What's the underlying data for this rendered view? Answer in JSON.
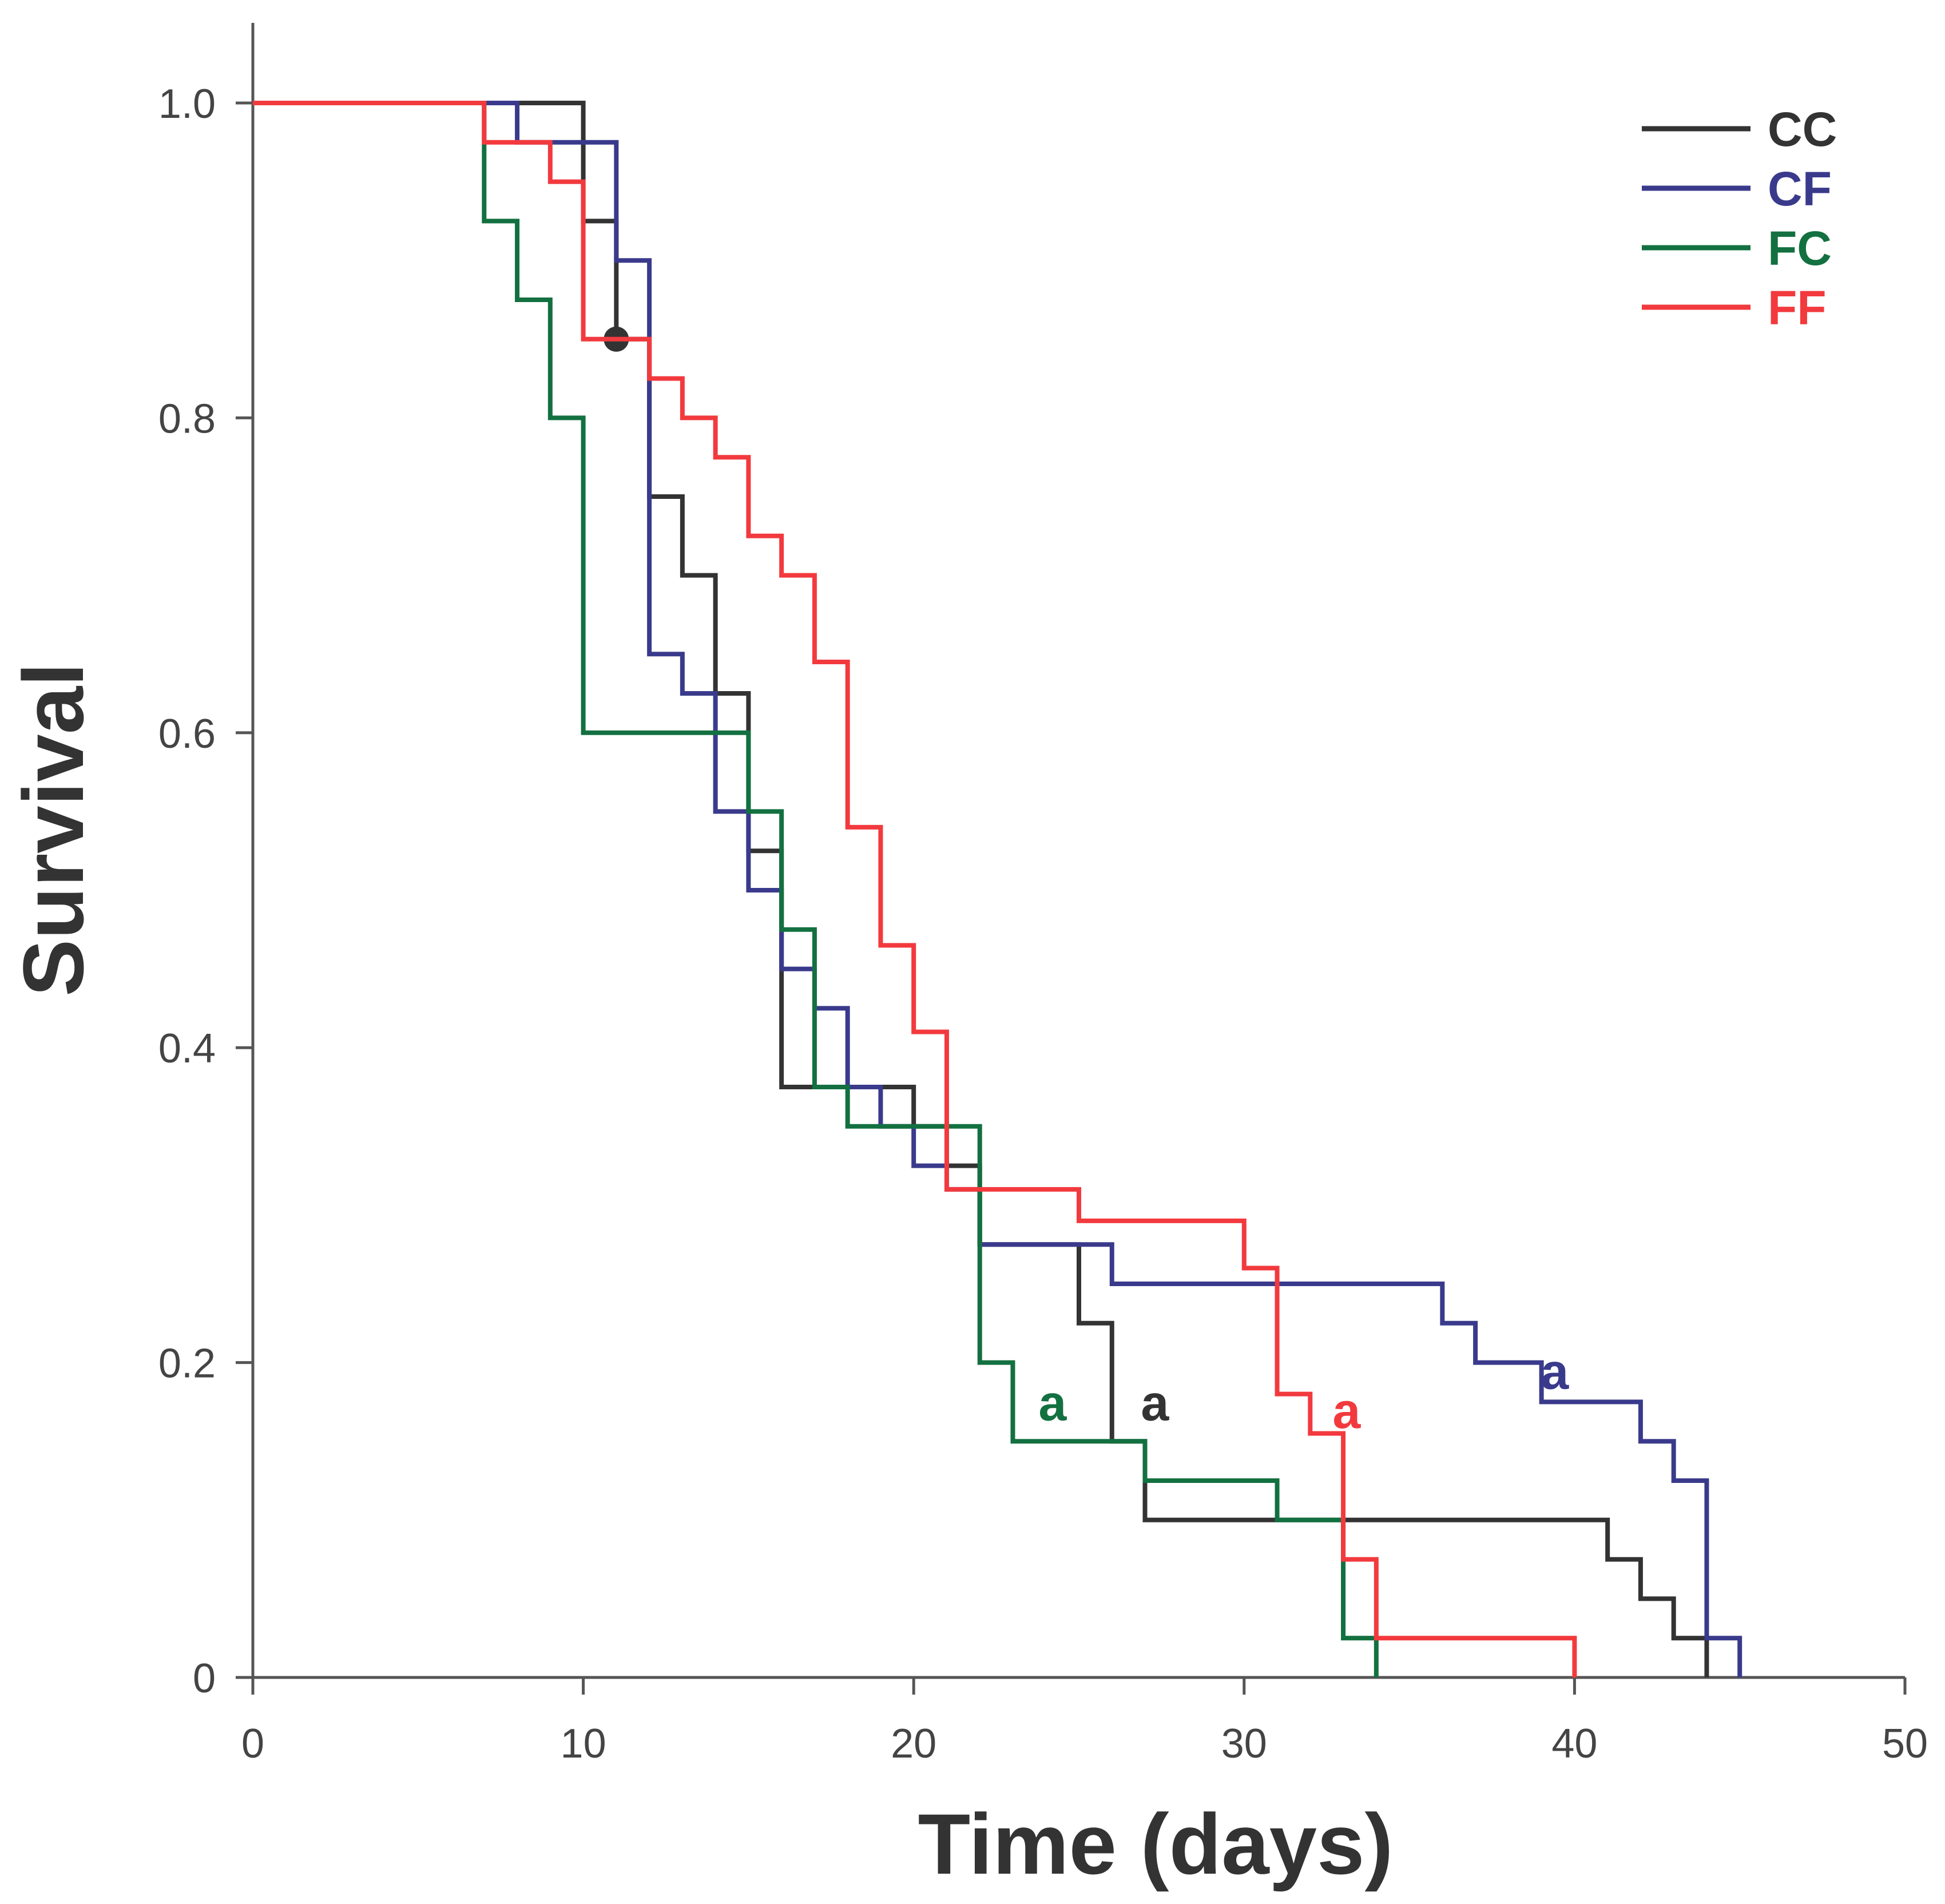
{
  "chart_data": {
    "type": "line",
    "subtype": "kaplan-meier-step",
    "title": "",
    "xlabel": "Time (days)",
    "ylabel": "Survival",
    "xlim": [
      0,
      50
    ],
    "ylim": [
      0,
      1.05
    ],
    "x_ticks": [
      0,
      10,
      20,
      30,
      40,
      50
    ],
    "x_tick_labels": [
      "0",
      "10",
      "20",
      "30",
      "40",
      "50"
    ],
    "y_ticks": [
      0,
      0.2,
      0.4,
      0.6,
      0.8,
      1.0
    ],
    "y_tick_labels": [
      "0",
      "0.2",
      "0.4",
      "0.6",
      "0.8",
      "1.0"
    ],
    "legend_position": "top-right",
    "series": [
      {
        "name": "CC",
        "color": "#333333",
        "steps": [
          [
            0,
            1.0
          ],
          [
            10,
            0.925
          ],
          [
            11,
            0.85
          ],
          [
            12,
            0.75
          ],
          [
            13,
            0.7
          ],
          [
            14,
            0.625
          ],
          [
            15,
            0.525
          ],
          [
            16,
            0.375
          ],
          [
            20,
            0.35
          ],
          [
            21,
            0.325
          ],
          [
            22,
            0.275
          ],
          [
            25,
            0.225
          ],
          [
            26,
            0.15
          ],
          [
            27,
            0.1
          ],
          [
            41,
            0.075
          ],
          [
            42,
            0.05
          ],
          [
            43,
            0.025
          ],
          [
            44,
            0.0
          ]
        ],
        "end_x": 44,
        "censored": [
          [
            11,
            0.85
          ]
        ],
        "annotation": "a",
        "annotation_at": [
          27.3,
          0.175
        ]
      },
      {
        "name": "CF",
        "color": "#3a3a8c",
        "steps": [
          [
            0,
            1.0
          ],
          [
            8,
            0.975
          ],
          [
            11,
            0.9
          ],
          [
            12,
            0.65
          ],
          [
            13,
            0.625
          ],
          [
            14,
            0.55
          ],
          [
            15,
            0.5
          ],
          [
            16,
            0.45
          ],
          [
            17,
            0.425
          ],
          [
            18,
            0.375
          ],
          [
            19,
            0.35
          ],
          [
            20,
            0.325
          ],
          [
            21,
            0.31
          ],
          [
            22,
            0.275
          ],
          [
            26,
            0.25
          ],
          [
            36,
            0.225
          ],
          [
            37,
            0.2
          ],
          [
            39,
            0.175
          ],
          [
            42,
            0.15
          ],
          [
            43,
            0.125
          ],
          [
            44,
            0.025
          ],
          [
            45,
            0.0
          ]
        ],
        "end_x": 45,
        "censored": [],
        "annotation": "a",
        "annotation_at": [
          39.4,
          0.195
        ]
      },
      {
        "name": "FC",
        "color": "#137040",
        "steps": [
          [
            0,
            1.0
          ],
          [
            7,
            0.925
          ],
          [
            8,
            0.875
          ],
          [
            9,
            0.8
          ],
          [
            10,
            0.6
          ],
          [
            14,
            0.6
          ],
          [
            15,
            0.55
          ],
          [
            16,
            0.475
          ],
          [
            17,
            0.375
          ],
          [
            18,
            0.35
          ],
          [
            19,
            0.35
          ],
          [
            22,
            0.2
          ],
          [
            23,
            0.15
          ],
          [
            27,
            0.125
          ],
          [
            31,
            0.1
          ],
          [
            33,
            0.025
          ],
          [
            34,
            0.0
          ]
        ],
        "end_x": 34,
        "censored": [],
        "annotation": "a",
        "annotation_at": [
          24.2,
          0.175
        ]
      },
      {
        "name": "FF",
        "color": "#f23a3e",
        "steps": [
          [
            0,
            1.0
          ],
          [
            7,
            0.975
          ],
          [
            9,
            0.95
          ],
          [
            10,
            0.85
          ],
          [
            12,
            0.825
          ],
          [
            13,
            0.8
          ],
          [
            14,
            0.775
          ],
          [
            15,
            0.725
          ],
          [
            16,
            0.7
          ],
          [
            17,
            0.645
          ],
          [
            18,
            0.54
          ],
          [
            19,
            0.465
          ],
          [
            20,
            0.41
          ],
          [
            21,
            0.31
          ],
          [
            25,
            0.29
          ],
          [
            30,
            0.26
          ],
          [
            31,
            0.18
          ],
          [
            32,
            0.155
          ],
          [
            33,
            0.075
          ],
          [
            34,
            0.025
          ],
          [
            40,
            0.0
          ]
        ],
        "end_x": 40,
        "censored": [],
        "annotation": "a",
        "annotation_at": [
          33.1,
          0.17
        ]
      }
    ]
  }
}
